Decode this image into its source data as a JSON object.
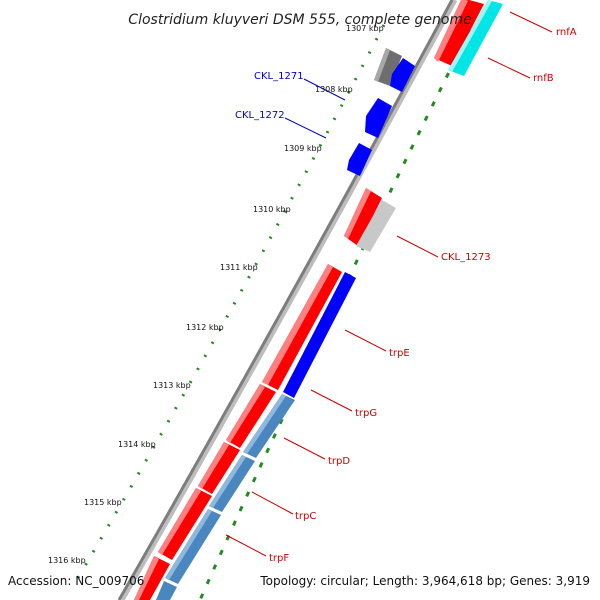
{
  "title": "Clostridium kluyveri DSM 555, complete genome",
  "footer": {
    "accession": "Accession: NC_009706",
    "summary": "Topology: circular; Length: 3,964,618 bp; Genes: 3,919"
  },
  "colors": {
    "forward_cds": "#ff0000",
    "reverse_cds": "#0000ff",
    "gray_cds": "#6e6e6e",
    "light_gray_cds": "#c8c8c8",
    "cyan_cds": "#00e6e6",
    "steel_blue_cds": "#4a86bf",
    "backbone": "#8a8a8a",
    "tick_dots": "#228b22",
    "forward_label": "#cc0000",
    "reverse_label": "#0000cc"
  },
  "ticks": [
    {
      "label": "1307 kbp"
    },
    {
      "label": "1308 kbp"
    },
    {
      "label": "1309 kbp"
    },
    {
      "label": "1310 kbp"
    },
    {
      "label": "1311 kbp"
    },
    {
      "label": "1312 kbp"
    },
    {
      "label": "1313 kbp"
    },
    {
      "label": "1314 kbp"
    },
    {
      "label": "1315 kbp"
    },
    {
      "label": "1316 kbp"
    }
  ],
  "gene_labels": [
    {
      "name": "rnfA",
      "strand": "forward"
    },
    {
      "name": "rnfB",
      "strand": "forward"
    },
    {
      "name": "CKL_1271",
      "strand": "reverse"
    },
    {
      "name": "CKL_1272",
      "strand": "reverse"
    },
    {
      "name": "CKL_1273",
      "strand": "forward"
    },
    {
      "name": "trpE",
      "strand": "forward"
    },
    {
      "name": "trpG",
      "strand": "forward"
    },
    {
      "name": "trpD",
      "strand": "forward"
    },
    {
      "name": "trpC",
      "strand": "forward"
    },
    {
      "name": "trpF",
      "strand": "forward"
    }
  ]
}
